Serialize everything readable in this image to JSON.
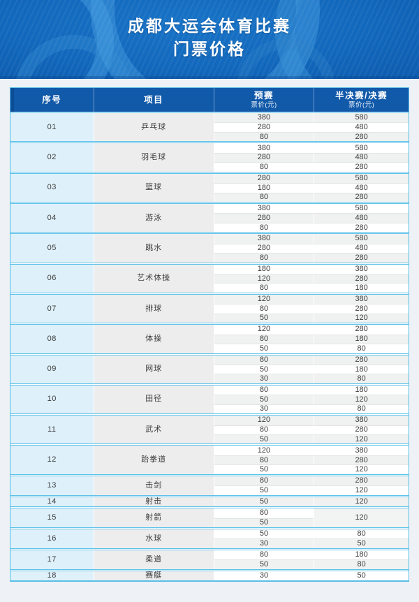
{
  "banner": {
    "title_line1": "成都大运会体育比赛",
    "title_line2": "门票价格"
  },
  "table": {
    "headers": {
      "no": "序号",
      "event": "项目",
      "prelim_main": "预赛",
      "prelim_sub": "票价(元)",
      "final_main": "半决赛/决赛",
      "final_sub": "票价(元)"
    },
    "groups": [
      {
        "no": "01",
        "event": "乒乓球",
        "prices": [
          {
            "pre": "380",
            "fin": "580"
          },
          {
            "pre": "280",
            "fin": "480"
          },
          {
            "pre": "80",
            "fin": "280"
          }
        ]
      },
      {
        "no": "02",
        "event": "羽毛球",
        "prices": [
          {
            "pre": "380",
            "fin": "580"
          },
          {
            "pre": "280",
            "fin": "480"
          },
          {
            "pre": "80",
            "fin": "280"
          }
        ]
      },
      {
        "no": "03",
        "event": "篮球",
        "prices": [
          {
            "pre": "280",
            "fin": "580"
          },
          {
            "pre": "180",
            "fin": "480"
          },
          {
            "pre": "80",
            "fin": "280"
          }
        ]
      },
      {
        "no": "04",
        "event": "游泳",
        "prices": [
          {
            "pre": "380",
            "fin": "580"
          },
          {
            "pre": "280",
            "fin": "480"
          },
          {
            "pre": "80",
            "fin": "280"
          }
        ]
      },
      {
        "no": "05",
        "event": "跳水",
        "prices": [
          {
            "pre": "380",
            "fin": "580"
          },
          {
            "pre": "280",
            "fin": "480"
          },
          {
            "pre": "80",
            "fin": "280"
          }
        ]
      },
      {
        "no": "06",
        "event": "艺术体操",
        "prices": [
          {
            "pre": "180",
            "fin": "380"
          },
          {
            "pre": "120",
            "fin": "280"
          },
          {
            "pre": "80",
            "fin": "180"
          }
        ]
      },
      {
        "no": "07",
        "event": "排球",
        "prices": [
          {
            "pre": "120",
            "fin": "380"
          },
          {
            "pre": "80",
            "fin": "280"
          },
          {
            "pre": "50",
            "fin": "120"
          }
        ]
      },
      {
        "no": "08",
        "event": "体操",
        "prices": [
          {
            "pre": "120",
            "fin": "280"
          },
          {
            "pre": "80",
            "fin": "180"
          },
          {
            "pre": "50",
            "fin": "80"
          }
        ]
      },
      {
        "no": "09",
        "event": "网球",
        "prices": [
          {
            "pre": "80",
            "fin": "280"
          },
          {
            "pre": "50",
            "fin": "180"
          },
          {
            "pre": "30",
            "fin": "80"
          }
        ]
      },
      {
        "no": "10",
        "event": "田径",
        "prices": [
          {
            "pre": "80",
            "fin": "180"
          },
          {
            "pre": "50",
            "fin": "120"
          },
          {
            "pre": "30",
            "fin": "80"
          }
        ]
      },
      {
        "no": "11",
        "event": "武术",
        "prices": [
          {
            "pre": "120",
            "fin": "380"
          },
          {
            "pre": "80",
            "fin": "280"
          },
          {
            "pre": "50",
            "fin": "120"
          }
        ]
      },
      {
        "no": "12",
        "event": "跆拳道",
        "prices": [
          {
            "pre": "120",
            "fin": "380"
          },
          {
            "pre": "80",
            "fin": "280"
          },
          {
            "pre": "50",
            "fin": "120"
          }
        ]
      },
      {
        "no": "13",
        "event": "击剑",
        "prices": [
          {
            "pre": "80",
            "fin": "280"
          },
          {
            "pre": "50",
            "fin": "120"
          }
        ]
      },
      {
        "no": "14",
        "event": "射击",
        "prices": [
          {
            "pre": "50",
            "fin": "120"
          }
        ]
      },
      {
        "no": "15",
        "event": "射箭",
        "prices": [
          {
            "pre": "80",
            "fin": "120",
            "fin_span": 2
          },
          {
            "pre": "50"
          }
        ]
      },
      {
        "no": "16",
        "event": "水球",
        "prices": [
          {
            "pre": "50",
            "fin": "80"
          },
          {
            "pre": "30",
            "fin": "50"
          }
        ]
      },
      {
        "no": "17",
        "event": "柔道",
        "prices": [
          {
            "pre": "80",
            "fin": "180"
          },
          {
            "pre": "50",
            "fin": "80"
          }
        ]
      },
      {
        "no": "18",
        "event": "赛艇",
        "prices": [
          {
            "pre": "30",
            "fin": "50"
          }
        ]
      }
    ]
  },
  "colors": {
    "banner_blue": "#1268bc",
    "banner_swirl_light": "#2f93dc",
    "header_blue": "#1159a9",
    "header_accent_dark": "#0c4d96",
    "table_border_cyan": "#56bde6",
    "no_column_bg": "#def0fa",
    "event_column_bg": "#ededee",
    "stripe_gray": "#f0f1f1",
    "page_bg": "#eef1f5"
  }
}
